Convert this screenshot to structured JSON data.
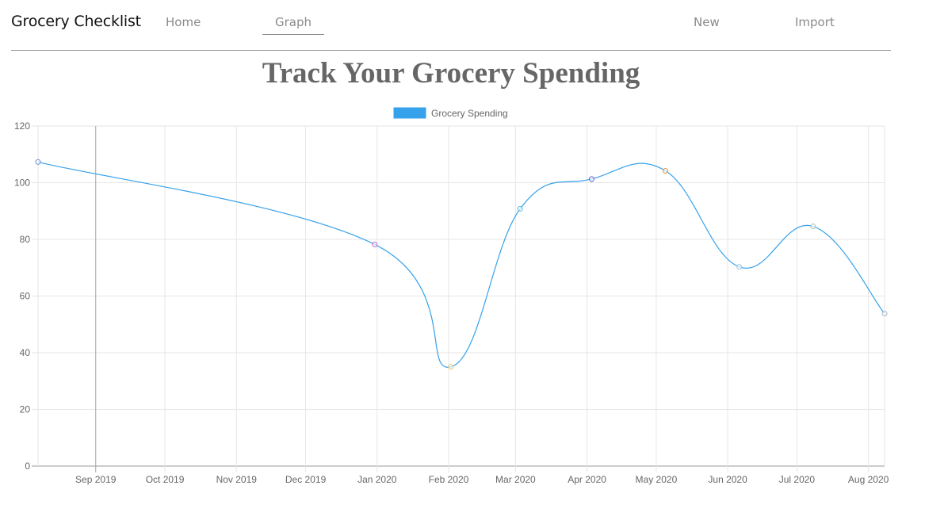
{
  "navbar": {
    "brand": "Grocery Checklist",
    "links": [
      {
        "label": "Home",
        "active": false
      },
      {
        "label": "Graph",
        "active": true
      },
      {
        "label": "New",
        "active": false
      },
      {
        "label": "Import",
        "active": false
      }
    ]
  },
  "page": {
    "title": "Track Your Grocery Spending"
  },
  "chart_data": {
    "type": "line",
    "title": "",
    "xlabel": "",
    "ylabel": "",
    "ylim": [
      0,
      120
    ],
    "y_ticks": [
      0,
      20,
      40,
      60,
      80,
      100,
      120
    ],
    "x_ticks": [
      "Sep 2019",
      "Oct 2019",
      "Nov 2019",
      "Dec 2019",
      "Jan 2020",
      "Feb 2020",
      "Mar 2020",
      "Apr 2020",
      "May 2020",
      "Jun 2020",
      "Jul 2020",
      "Aug 2020"
    ],
    "x_tick_dates": [
      "2019-09-01",
      "2019-10-01",
      "2019-11-01",
      "2019-12-01",
      "2020-01-01",
      "2020-02-01",
      "2020-03-01",
      "2020-04-01",
      "2020-05-01",
      "2020-06-01",
      "2020-07-01",
      "2020-08-01"
    ],
    "grid": true,
    "legend_position": "top-center",
    "series": [
      {
        "name": "Grocery Spending",
        "color": "#36a2eb",
        "points": [
          {
            "x": "2019-08-07",
            "y": 107.3,
            "color": "#6f8fd8"
          },
          {
            "x": "2019-12-31",
            "y": 78.2,
            "color": "#c462c4"
          },
          {
            "x": "2020-02-02",
            "y": 35.0,
            "color": "#e3c76a"
          },
          {
            "x": "2020-03-03",
            "y": 90.8,
            "color": "#5ab8d8"
          },
          {
            "x": "2020-04-03",
            "y": 101.3,
            "color": "#6a5ad8"
          },
          {
            "x": "2020-05-05",
            "y": 104.2,
            "color": "#e8923a"
          },
          {
            "x": "2020-06-06",
            "y": 70.3,
            "color": "#9ac9d6"
          },
          {
            "x": "2020-07-08",
            "y": 84.6,
            "color": "#a8c6b4"
          },
          {
            "x": "2020-08-08",
            "y": 53.8,
            "color": "#a9b4be"
          }
        ]
      }
    ]
  }
}
